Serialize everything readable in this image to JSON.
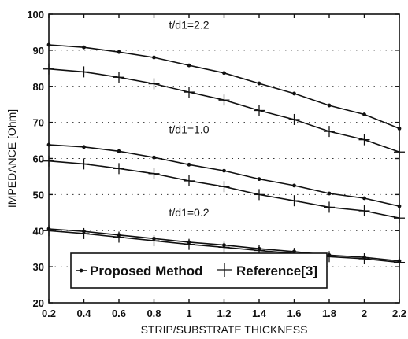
{
  "chart_data": {
    "type": "line",
    "xlabel": "STRIP/SUBSTRATE THICKNESS",
    "ylabel": "IMPEDANCE  [Ohm]",
    "xlim": [
      0.2,
      2.2
    ],
    "ylim": [
      20,
      100
    ],
    "xticks": [
      "0.2",
      "0.4",
      "0.6",
      "0.8",
      "1",
      "1.2",
      "1.4",
      "1.6",
      "1.8",
      "2",
      "2.2"
    ],
    "yticks": [
      "20",
      "30",
      "40",
      "50",
      "60",
      "70",
      "80",
      "90",
      "100"
    ],
    "grid": "dotted",
    "legend_position": "bottom-left",
    "x": [
      0.2,
      0.4,
      0.6,
      0.8,
      1.0,
      1.2,
      1.4,
      1.6,
      1.8,
      2.0,
      2.2
    ],
    "series": [
      {
        "name": "Proposed Method",
        "group": "t/d1=2.2",
        "marker": "dot",
        "values": [
          91.5,
          90.8,
          89.5,
          88.0,
          85.8,
          83.7,
          80.8,
          78.0,
          74.7,
          72.2,
          68.3
        ]
      },
      {
        "name": "Reference[3]",
        "group": "t/d1=2.2",
        "marker": "plus",
        "values": [
          84.8,
          84.0,
          82.5,
          80.7,
          78.4,
          76.2,
          73.3,
          70.8,
          67.5,
          65.2,
          61.8
        ]
      },
      {
        "name": "Proposed Method",
        "group": "t/d1=1.0",
        "marker": "dot",
        "values": [
          63.8,
          63.2,
          62.0,
          60.3,
          58.3,
          56.6,
          54.3,
          52.5,
          50.3,
          49.0,
          46.8
        ]
      },
      {
        "name": "Reference[3]",
        "group": "t/d1=1.0",
        "marker": "plus",
        "values": [
          59.3,
          58.5,
          57.2,
          55.8,
          53.8,
          52.2,
          50.0,
          48.3,
          46.5,
          45.5,
          43.5
        ]
      },
      {
        "name": "Proposed Method",
        "group": "t/d1=0.2",
        "marker": "dot",
        "values": [
          40.5,
          39.8,
          38.8,
          37.8,
          36.8,
          36.0,
          35.0,
          34.2,
          33.2,
          32.6,
          31.6
        ]
      },
      {
        "name": "Reference[3]",
        "group": "t/d1=0.2",
        "marker": "plus",
        "values": [
          40.0,
          39.2,
          38.2,
          37.2,
          36.2,
          35.4,
          34.5,
          33.7,
          32.8,
          32.2,
          31.2
        ]
      }
    ],
    "annotations": [
      {
        "text": "t/d1=2.2",
        "x": 1.0,
        "y": 96.0
      },
      {
        "text": "t/d1=1.0",
        "x": 1.0,
        "y": 67.0
      },
      {
        "text": "t/d1=0.2",
        "x": 1.0,
        "y": 44.0
      }
    ],
    "legend": {
      "proposed_label": "Proposed Method",
      "reference_label": "Reference[3]"
    }
  }
}
